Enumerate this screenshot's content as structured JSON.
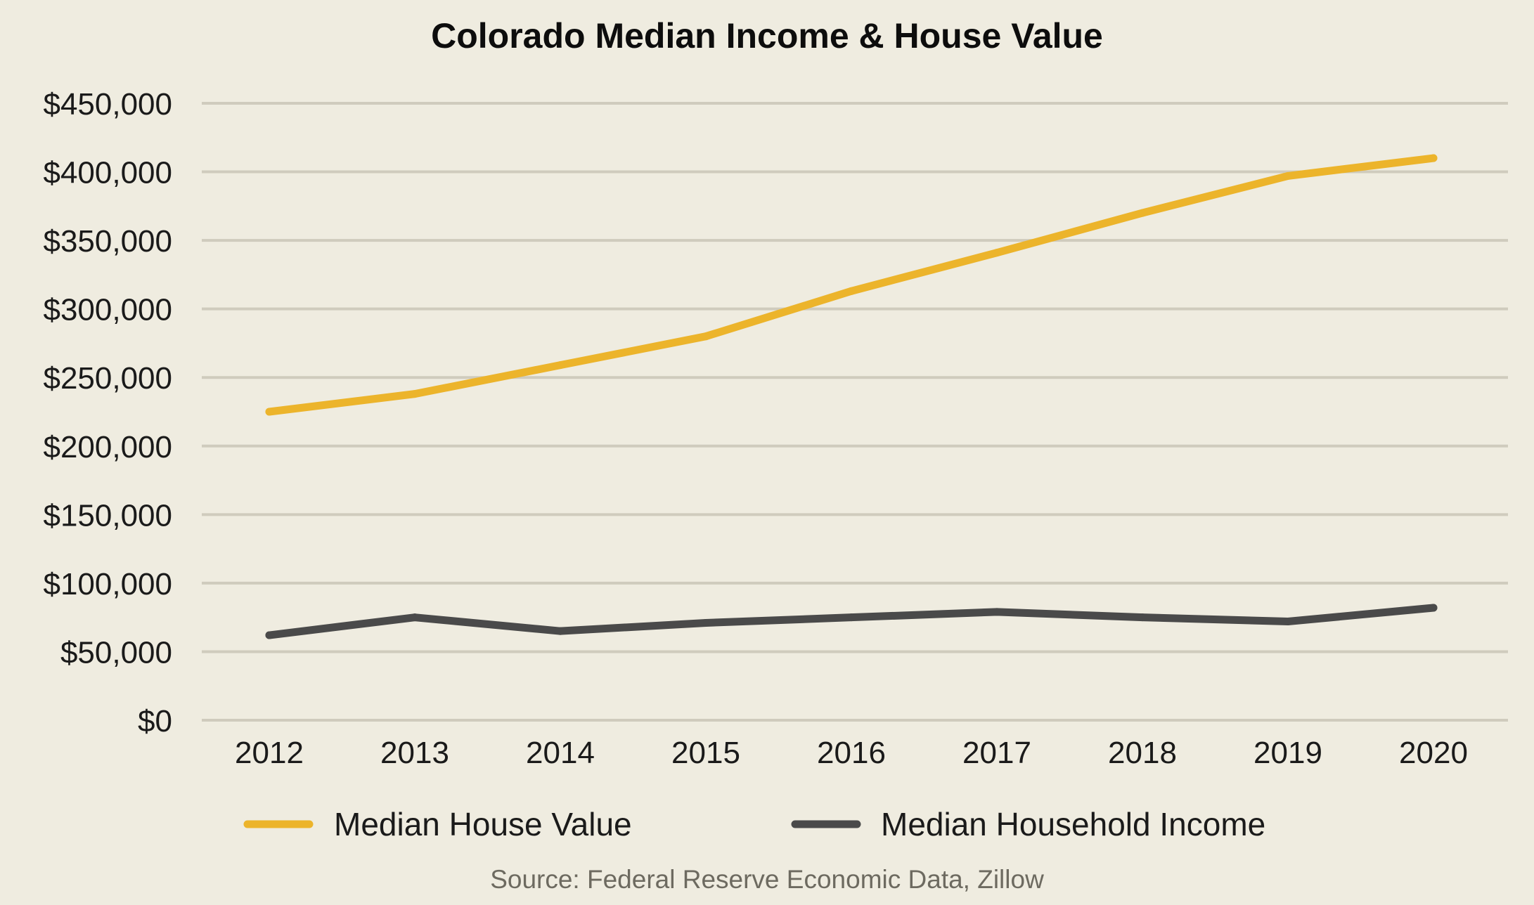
{
  "chart_data": {
    "type": "line",
    "title": "Colorado Median Income & House Value",
    "categories": [
      "2012",
      "2013",
      "2014",
      "2015",
      "2016",
      "2017",
      "2018",
      "2019",
      "2020"
    ],
    "y_ticks": [
      0,
      50000,
      100000,
      150000,
      200000,
      250000,
      300000,
      350000,
      400000,
      450000
    ],
    "y_tick_labels": [
      "$0",
      "$50,000",
      "$100,000",
      "$150,000",
      "$200,000",
      "$250,000",
      "$300,000",
      "$350,000",
      "$400,000",
      "$450,000"
    ],
    "ylim": [
      0,
      450000
    ],
    "grid": true,
    "legend_position": "bottom",
    "series": [
      {
        "name": "Median House Value",
        "color": "#ecb42b",
        "values": [
          225000,
          238000,
          259000,
          280000,
          313000,
          341000,
          370000,
          397000,
          410000
        ]
      },
      {
        "name": "Median Household Income",
        "color": "#4a4a4a",
        "values": [
          62000,
          75000,
          65000,
          71000,
          75000,
          79000,
          75000,
          72000,
          82000
        ]
      }
    ],
    "source": "Source: Federal Reserve Economic Data, Zillow"
  }
}
